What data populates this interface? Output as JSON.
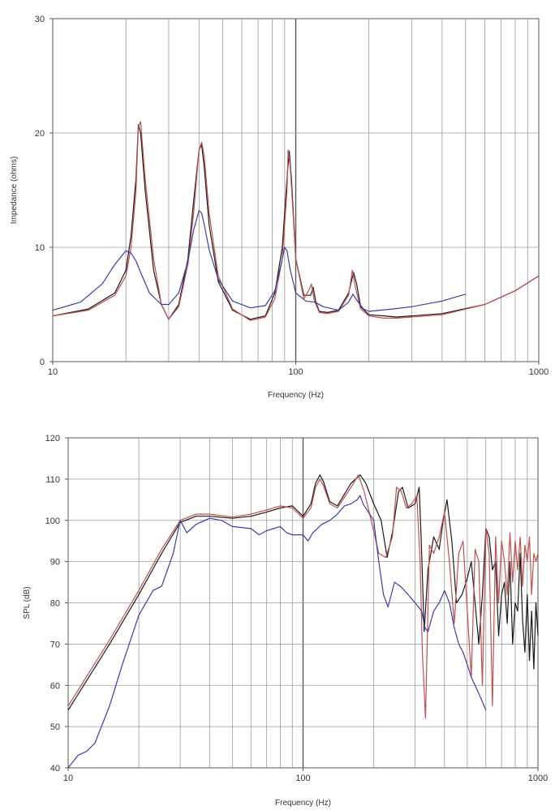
{
  "colors": {
    "black": "#1a1a1a",
    "red": "#c0504d",
    "blue": "#3c3ca8",
    "grid": "#9a9a9a"
  },
  "chart_data": [
    {
      "type": "line",
      "xscale": "log",
      "xlabel": "Frequency (Hz)",
      "ylabel": "Impedance (ohms)",
      "xlim": [
        10,
        1000
      ],
      "ylim": [
        0,
        30
      ],
      "grid": true,
      "xticks": [
        "10",
        "100",
        "1000"
      ],
      "yticks": [
        "0",
        "10",
        "20",
        "30"
      ],
      "series": [
        {
          "color": "#1a1a1a",
          "x": [
            10,
            14,
            18,
            20,
            21,
            22,
            22.5,
            23,
            24,
            26,
            28,
            30,
            33,
            36,
            38,
            40,
            41,
            42,
            44,
            48,
            55,
            65,
            75,
            82,
            88,
            92,
            94,
            96,
            100,
            108,
            115,
            118,
            121,
            125,
            135,
            150,
            165,
            173,
            178,
            185,
            200,
            230,
            260,
            300,
            400,
            600,
            800,
            1000
          ],
          "y": [
            4.0,
            4.6,
            6.0,
            8.0,
            11,
            16,
            20.7,
            20,
            15,
            8,
            5,
            3.7,
            5,
            9,
            14,
            18.5,
            19,
            17,
            12,
            7,
            4.5,
            3.7,
            4.0,
            6,
            10,
            16,
            18.4,
            16,
            9,
            5.8,
            5.8,
            6.5,
            5.2,
            4.4,
            4.3,
            4.5,
            6,
            7.8,
            6.8,
            4.8,
            4.1,
            4.0,
            3.9,
            4.0,
            4.2,
            5,
            6.2,
            7.5
          ]
        },
        {
          "color": "#c0504d",
          "x": [
            10,
            14,
            18,
            20,
            21,
            22,
            22.5,
            23,
            24,
            26,
            28,
            30,
            33,
            36,
            38,
            40,
            41,
            42,
            44,
            48,
            55,
            65,
            75,
            82,
            88,
            92,
            93,
            95,
            100,
            108,
            113,
            116,
            119,
            125,
            135,
            150,
            165,
            171,
            176,
            185,
            200,
            230,
            260,
            300,
            400,
            600,
            800,
            1000
          ],
          "y": [
            4.0,
            4.5,
            5.8,
            7.5,
            10,
            15,
            20.5,
            21,
            16,
            9,
            5,
            3.7,
            4.8,
            8.5,
            13,
            18.5,
            19.2,
            18,
            13,
            7.5,
            4.6,
            3.6,
            3.9,
            5.5,
            9,
            15,
            18.5,
            17,
            9,
            5.5,
            6.2,
            6.8,
            5.4,
            4.3,
            4.2,
            4.4,
            5.8,
            8,
            6.5,
            4.6,
            4.0,
            3.8,
            3.8,
            3.9,
            4.1,
            5,
            6.2,
            7.5
          ]
        },
        {
          "color": "#3c3ca8",
          "x": [
            10,
            13,
            16,
            18,
            20,
            21,
            22,
            23,
            25,
            28,
            30,
            33,
            36,
            38,
            40,
            41,
            42,
            44,
            48,
            55,
            65,
            75,
            82,
            87,
            90,
            92,
            95,
            100,
            110,
            120,
            130,
            150,
            165,
            172,
            178,
            190,
            200,
            250,
            300,
            400,
            500
          ],
          "y": [
            4.5,
            5.2,
            6.8,
            8.5,
            9.7,
            9.5,
            8.8,
            7.8,
            6.0,
            5.0,
            5.0,
            6.0,
            8.8,
            11.5,
            13.2,
            13,
            12,
            9.8,
            7.2,
            5.3,
            4.7,
            4.9,
            6.2,
            8.5,
            10,
            9.7,
            8,
            6,
            5.3,
            5.2,
            4.8,
            4.5,
            5.2,
            5.9,
            5.4,
            4.6,
            4.4,
            4.6,
            4.8,
            5.3,
            5.9
          ]
        }
      ]
    },
    {
      "type": "line",
      "xscale": "log",
      "xlabel": "Frequency (Hz)",
      "ylabel": "SPL (dB)",
      "xlim": [
        10,
        1000
      ],
      "ylim": [
        40,
        120
      ],
      "grid": true,
      "xticks": [
        "10",
        "100",
        "1000"
      ],
      "yticks": [
        "40",
        "50",
        "60",
        "70",
        "80",
        "90",
        "100",
        "110",
        "120"
      ],
      "series": [
        {
          "color": "#1a1a1a",
          "x": [
            10,
            15,
            20,
            25,
            30,
            35,
            40,
            50,
            60,
            70,
            80,
            90,
            100,
            108,
            113,
            118,
            122,
            130,
            140,
            160,
            175,
            185,
            200,
            215,
            228,
            240,
            255,
            265,
            280,
            300,
            312,
            318,
            328,
            340,
            360,
            380,
            395,
            410,
            430,
            450,
            475,
            500,
            520,
            540,
            560,
            580,
            600,
            620,
            640,
            660,
            680,
            700,
            720,
            740,
            760,
            780,
            800,
            820,
            840,
            860,
            880,
            900,
            920,
            940,
            960,
            980,
            1000
          ],
          "y": [
            54,
            70,
            82,
            92,
            99.5,
            101,
            101,
            100.5,
            101,
            102,
            103,
            103.5,
            101,
            104,
            109,
            111,
            109.5,
            104.5,
            103.5,
            109,
            111,
            109,
            104,
            100,
            91,
            97,
            107,
            108,
            103,
            104,
            108,
            96,
            73,
            88,
            96,
            93,
            100,
            105,
            95,
            80,
            82,
            86,
            90,
            80,
            70,
            82,
            98,
            96,
            88,
            90,
            72,
            82,
            85,
            75,
            90,
            70,
            80,
            78,
            92,
            76,
            68,
            82,
            66,
            78,
            64,
            80,
            72
          ]
        },
        {
          "color": "#c0504d",
          "x": [
            10,
            15,
            20,
            25,
            30,
            35,
            40,
            50,
            60,
            70,
            80,
            90,
            100,
            108,
            113,
            118,
            122,
            130,
            140,
            160,
            172,
            182,
            195,
            210,
            225,
            240,
            250,
            262,
            275,
            290,
            305,
            315,
            322,
            332,
            345,
            360,
            380,
            400,
            420,
            440,
            460,
            480,
            500,
            520,
            540,
            560,
            580,
            600,
            620,
            640,
            660,
            680,
            700,
            720,
            740,
            760,
            780,
            800,
            820,
            840,
            860,
            880,
            900,
            920,
            940,
            960,
            980,
            1000
          ],
          "y": [
            55,
            71,
            83,
            93,
            100,
            101.5,
            101.5,
            100.8,
            101.5,
            102.5,
            103.5,
            103,
            100.5,
            103,
            108,
            110,
            108.5,
            104,
            103,
            108,
            111,
            107,
            100,
            92,
            91,
            96,
            108,
            107,
            103,
            104,
            106,
            90,
            68,
            52,
            94,
            92,
            96,
            102,
            90,
            75,
            92,
            95,
            78,
            62,
            93,
            90,
            60,
            98,
            92,
            55,
            96,
            80,
            95,
            90,
            82,
            97,
            85,
            95,
            88,
            96,
            84,
            94,
            90,
            96,
            82,
            92,
            90,
            92
          ]
        },
        {
          "color": "#3c3ca8",
          "x": [
            10,
            11,
            12,
            13,
            15,
            17,
            20,
            23,
            25,
            28,
            30,
            32,
            35,
            40,
            45,
            50,
            60,
            65,
            70,
            80,
            85,
            90,
            95,
            100,
            105,
            110,
            115,
            120,
            130,
            140,
            150,
            160,
            170,
            175,
            180,
            200,
            210,
            220,
            230,
            245,
            260,
            280,
            300,
            320,
            330,
            340,
            360,
            380,
            400,
            420,
            440,
            460,
            480,
            500,
            520,
            540,
            560,
            580,
            600
          ],
          "y": [
            40,
            43,
            44,
            46,
            55,
            65,
            77,
            83,
            84,
            92,
            100,
            97,
            99,
            100.5,
            100,
            98.5,
            98,
            96.5,
            97.5,
            98.5,
            97,
            96.5,
            96.5,
            96.5,
            95,
            97,
            98,
            99,
            100,
            101.5,
            103.5,
            104,
            105,
            106,
            104,
            100,
            90,
            82,
            79,
            85,
            84,
            82,
            80,
            78,
            74,
            73,
            78,
            80,
            83,
            80,
            74,
            70,
            68,
            65,
            62,
            60,
            58,
            56,
            54
          ]
        }
      ]
    }
  ]
}
